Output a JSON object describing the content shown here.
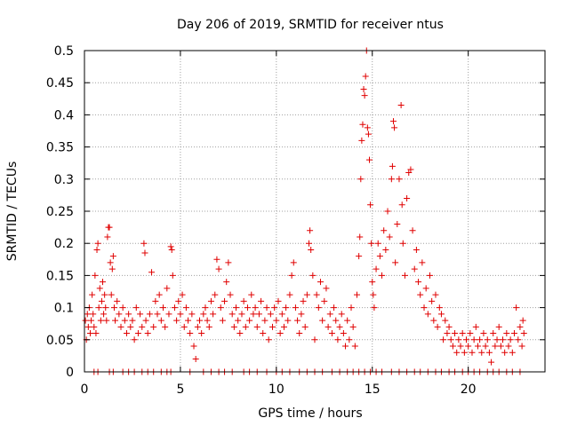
{
  "chart_data": {
    "type": "scatter",
    "title": "Day 206 of 2019, SRMTID for receiver ntus",
    "xlabel": "GPS time / hours",
    "ylabel": "SRMTID / TECUs",
    "xlim": [
      0,
      24
    ],
    "ylim": [
      0,
      0.5
    ],
    "x_ticks": [
      "0",
      "5",
      "10",
      "15",
      "20"
    ],
    "y_ticks": [
      "0",
      "0.05",
      "0.1",
      "0.15",
      "0.2",
      "0.25",
      "0.3",
      "0.35",
      "0.4",
      "0.45",
      "0.5"
    ],
    "x_tick_values": [
      0,
      5,
      10,
      15,
      20
    ],
    "y_tick_values": [
      0,
      0.05,
      0.1,
      0.15,
      0.2,
      0.25,
      0.3,
      0.35,
      0.4,
      0.45,
      0.5
    ],
    "grid": true,
    "marker": "+",
    "marker_color": "#e00000",
    "series": [
      {
        "points": [
          [
            0.05,
            0.08
          ],
          [
            0.1,
            0.05
          ],
          [
            0.15,
            0.09
          ],
          [
            0.2,
            0.07
          ],
          [
            0.25,
            0.1
          ],
          [
            0.3,
            0.06
          ],
          [
            0.35,
            0.08
          ],
          [
            0.4,
            0.12
          ],
          [
            0.45,
            0.09
          ],
          [
            0.5,
            0.07
          ],
          [
            0.55,
            0.15
          ],
          [
            0.6,
            0.06
          ],
          [
            0.65,
            0.19
          ],
          [
            0.7,
            0.2
          ],
          [
            0.75,
            0.1
          ],
          [
            0.8,
            0.13
          ],
          [
            0.85,
            0.08
          ],
          [
            0.9,
            0.11
          ],
          [
            0.95,
            0.14
          ],
          [
            1.0,
            0.09
          ],
          [
            1.05,
            0.12
          ],
          [
            1.1,
            0.1
          ],
          [
            1.15,
            0.08
          ],
          [
            1.2,
            0.21
          ],
          [
            1.25,
            0.225
          ],
          [
            1.3,
            0.225
          ],
          [
            1.35,
            0.17
          ],
          [
            1.4,
            0.12
          ],
          [
            1.45,
            0.16
          ],
          [
            1.5,
            0.18
          ],
          [
            1.55,
            0.1
          ],
          [
            1.6,
            0.08
          ],
          [
            1.7,
            0.11
          ],
          [
            1.8,
            0.09
          ],
          [
            1.9,
            0.07
          ],
          [
            2.0,
            0.1
          ],
          [
            2.1,
            0.08
          ],
          [
            2.2,
            0.06
          ],
          [
            2.3,
            0.09
          ],
          [
            2.4,
            0.07
          ],
          [
            2.5,
            0.08
          ],
          [
            2.6,
            0.05
          ],
          [
            2.7,
            0.1
          ],
          [
            2.8,
            0.06
          ],
          [
            2.9,
            0.09
          ],
          [
            3.0,
            0.07
          ],
          [
            3.1,
            0.2
          ],
          [
            3.15,
            0.185
          ],
          [
            3.2,
            0.08
          ],
          [
            3.3,
            0.06
          ],
          [
            3.4,
            0.09
          ],
          [
            3.5,
            0.155
          ],
          [
            3.6,
            0.07
          ],
          [
            3.7,
            0.11
          ],
          [
            3.8,
            0.09
          ],
          [
            3.9,
            0.12
          ],
          [
            4.0,
            0.08
          ],
          [
            4.1,
            0.1
          ],
          [
            4.2,
            0.07
          ],
          [
            4.3,
            0.13
          ],
          [
            4.4,
            0.09
          ],
          [
            4.5,
            0.195
          ],
          [
            4.55,
            0.19
          ],
          [
            4.6,
            0.15
          ],
          [
            4.7,
            0.1
          ],
          [
            4.8,
            0.08
          ],
          [
            4.9,
            0.11
          ],
          [
            5.0,
            0.09
          ],
          [
            5.1,
            0.12
          ],
          [
            5.2,
            0.07
          ],
          [
            5.3,
            0.1
          ],
          [
            5.4,
            0.08
          ],
          [
            5.5,
            0.06
          ],
          [
            5.6,
            0.09
          ],
          [
            5.7,
            0.04
          ],
          [
            5.8,
            0.02
          ],
          [
            5.9,
            0.07
          ],
          [
            6.0,
            0.08
          ],
          [
            6.1,
            0.06
          ],
          [
            6.2,
            0.09
          ],
          [
            6.3,
            0.1
          ],
          [
            6.4,
            0.08
          ],
          [
            6.5,
            0.07
          ],
          [
            6.6,
            0.11
          ],
          [
            6.7,
            0.09
          ],
          [
            6.8,
            0.12
          ],
          [
            6.9,
            0.175
          ],
          [
            7.0,
            0.16
          ],
          [
            7.1,
            0.1
          ],
          [
            7.2,
            0.08
          ],
          [
            7.3,
            0.11
          ],
          [
            7.4,
            0.14
          ],
          [
            7.5,
            0.17
          ],
          [
            7.6,
            0.12
          ],
          [
            7.7,
            0.09
          ],
          [
            7.8,
            0.07
          ],
          [
            7.9,
            0.1
          ],
          [
            8.0,
            0.08
          ],
          [
            8.1,
            0.06
          ],
          [
            8.2,
            0.09
          ],
          [
            8.3,
            0.11
          ],
          [
            8.4,
            0.07
          ],
          [
            8.5,
            0.1
          ],
          [
            8.6,
            0.08
          ],
          [
            8.7,
            0.12
          ],
          [
            8.8,
            0.09
          ],
          [
            8.9,
            0.1
          ],
          [
            9.0,
            0.07
          ],
          [
            9.1,
            0.09
          ],
          [
            9.2,
            0.11
          ],
          [
            9.3,
            0.06
          ],
          [
            9.4,
            0.08
          ],
          [
            9.5,
            0.1
          ],
          [
            9.6,
            0.05
          ],
          [
            9.7,
            0.09
          ],
          [
            9.8,
            0.07
          ],
          [
            9.9,
            0.1
          ],
          [
            10.0,
            0.08
          ],
          [
            10.1,
            0.11
          ],
          [
            10.2,
            0.06
          ],
          [
            10.3,
            0.09
          ],
          [
            10.4,
            0.07
          ],
          [
            10.5,
            0.1
          ],
          [
            10.6,
            0.08
          ],
          [
            10.7,
            0.12
          ],
          [
            10.8,
            0.15
          ],
          [
            10.9,
            0.17
          ],
          [
            11.0,
            0.1
          ],
          [
            11.1,
            0.08
          ],
          [
            11.2,
            0.06
          ],
          [
            11.3,
            0.09
          ],
          [
            11.4,
            0.11
          ],
          [
            11.5,
            0.07
          ],
          [
            11.6,
            0.12
          ],
          [
            11.7,
            0.2
          ],
          [
            11.75,
            0.22
          ],
          [
            11.8,
            0.19
          ],
          [
            11.9,
            0.15
          ],
          [
            12.0,
            0.05
          ],
          [
            12.1,
            0.12
          ],
          [
            12.2,
            0.1
          ],
          [
            12.3,
            0.14
          ],
          [
            12.4,
            0.08
          ],
          [
            12.5,
            0.11
          ],
          [
            12.6,
            0.13
          ],
          [
            12.7,
            0.07
          ],
          [
            12.8,
            0.09
          ],
          [
            12.9,
            0.06
          ],
          [
            13.0,
            0.1
          ],
          [
            13.1,
            0.08
          ],
          [
            13.2,
            0.05
          ],
          [
            13.3,
            0.07
          ],
          [
            13.4,
            0.09
          ],
          [
            13.5,
            0.06
          ],
          [
            13.6,
            0.04
          ],
          [
            13.7,
            0.08
          ],
          [
            13.8,
            0.05
          ],
          [
            13.9,
            0.1
          ],
          [
            14.0,
            0.07
          ],
          [
            14.1,
            0.04
          ],
          [
            14.2,
            0.12
          ],
          [
            14.3,
            0.18
          ],
          [
            14.35,
            0.21
          ],
          [
            14.4,
            0.3
          ],
          [
            14.45,
            0.36
          ],
          [
            14.5,
            0.385
          ],
          [
            14.55,
            0.44
          ],
          [
            14.6,
            0.43
          ],
          [
            14.65,
            0.46
          ],
          [
            14.7,
            0.5
          ],
          [
            14.75,
            0.38
          ],
          [
            14.8,
            0.37
          ],
          [
            14.85,
            0.33
          ],
          [
            14.9,
            0.26
          ],
          [
            14.95,
            0.2
          ],
          [
            15.0,
            0.14
          ],
          [
            15.05,
            0.12
          ],
          [
            15.1,
            0.1
          ],
          [
            15.2,
            0.16
          ],
          [
            15.3,
            0.2
          ],
          [
            15.4,
            0.18
          ],
          [
            15.5,
            0.15
          ],
          [
            15.6,
            0.22
          ],
          [
            15.7,
            0.19
          ],
          [
            15.8,
            0.25
          ],
          [
            15.9,
            0.21
          ],
          [
            16.0,
            0.3
          ],
          [
            16.05,
            0.32
          ],
          [
            16.1,
            0.39
          ],
          [
            16.15,
            0.38
          ],
          [
            16.2,
            0.17
          ],
          [
            16.3,
            0.23
          ],
          [
            16.4,
            0.3
          ],
          [
            16.5,
            0.415
          ],
          [
            16.55,
            0.26
          ],
          [
            16.6,
            0.2
          ],
          [
            16.7,
            0.15
          ],
          [
            16.8,
            0.27
          ],
          [
            16.9,
            0.31
          ],
          [
            17.0,
            0.315
          ],
          [
            17.1,
            0.22
          ],
          [
            17.2,
            0.16
          ],
          [
            17.3,
            0.19
          ],
          [
            17.4,
            0.14
          ],
          [
            17.5,
            0.12
          ],
          [
            17.6,
            0.17
          ],
          [
            17.7,
            0.1
          ],
          [
            17.8,
            0.13
          ],
          [
            17.9,
            0.09
          ],
          [
            18.0,
            0.15
          ],
          [
            18.1,
            0.11
          ],
          [
            18.2,
            0.08
          ],
          [
            18.3,
            0.12
          ],
          [
            18.4,
            0.07
          ],
          [
            18.5,
            0.1
          ],
          [
            18.6,
            0.09
          ],
          [
            18.7,
            0.05
          ],
          [
            18.8,
            0.08
          ],
          [
            18.9,
            0.06
          ],
          [
            19.0,
            0.07
          ],
          [
            19.1,
            0.05
          ],
          [
            19.2,
            0.04
          ],
          [
            19.3,
            0.06
          ],
          [
            19.4,
            0.03
          ],
          [
            19.5,
            0.05
          ],
          [
            19.6,
            0.04
          ],
          [
            19.7,
            0.06
          ],
          [
            19.8,
            0.03
          ],
          [
            19.9,
            0.05
          ],
          [
            20.0,
            0.04
          ],
          [
            20.1,
            0.06
          ],
          [
            20.2,
            0.03
          ],
          [
            20.3,
            0.05
          ],
          [
            20.4,
            0.07
          ],
          [
            20.5,
            0.04
          ],
          [
            20.6,
            0.05
          ],
          [
            20.7,
            0.03
          ],
          [
            20.8,
            0.06
          ],
          [
            20.9,
            0.04
          ],
          [
            21.0,
            0.05
          ],
          [
            21.1,
            0.03
          ],
          [
            21.2,
            0.015
          ],
          [
            21.3,
            0.06
          ],
          [
            21.4,
            0.04
          ],
          [
            21.5,
            0.05
          ],
          [
            21.6,
            0.07
          ],
          [
            21.7,
            0.04
          ],
          [
            21.8,
            0.05
          ],
          [
            21.9,
            0.03
          ],
          [
            22.0,
            0.06
          ],
          [
            22.1,
            0.04
          ],
          [
            22.2,
            0.05
          ],
          [
            22.3,
            0.03
          ],
          [
            22.4,
            0.06
          ],
          [
            22.5,
            0.1
          ],
          [
            22.6,
            0.05
          ],
          [
            22.7,
            0.07
          ],
          [
            22.8,
            0.04
          ],
          [
            22.85,
            0.08
          ],
          [
            22.9,
            0.06
          ]
        ]
      },
      {
        "points": [
          [
            0.5,
            0
          ],
          [
            0.7,
            0
          ],
          [
            1.3,
            0
          ],
          [
            1.5,
            0
          ],
          [
            2.0,
            0
          ],
          [
            2.3,
            0
          ],
          [
            2.6,
            0
          ],
          [
            3.0,
            0
          ],
          [
            3.3,
            0
          ],
          [
            3.6,
            0
          ],
          [
            4.0,
            0
          ],
          [
            4.3,
            0
          ],
          [
            4.5,
            0
          ],
          [
            5.5,
            0
          ],
          [
            6.2,
            0
          ],
          [
            6.6,
            0
          ],
          [
            7.0,
            0
          ],
          [
            7.3,
            0
          ],
          [
            7.7,
            0
          ],
          [
            8.3,
            0
          ],
          [
            8.6,
            0
          ],
          [
            9.0,
            0
          ],
          [
            9.5,
            0
          ],
          [
            10.0,
            0
          ],
          [
            10.3,
            0
          ],
          [
            10.7,
            0
          ],
          [
            11.2,
            0
          ],
          [
            11.6,
            0
          ],
          [
            12.0,
            0
          ],
          [
            12.4,
            0
          ],
          [
            12.9,
            0
          ],
          [
            13.3,
            0
          ],
          [
            13.7,
            0
          ],
          [
            14.0,
            0
          ],
          [
            14.3,
            0
          ],
          [
            14.6,
            0
          ],
          [
            14.9,
            0
          ],
          [
            15.2,
            0
          ],
          [
            15.5,
            0
          ],
          [
            16.0,
            0
          ],
          [
            16.4,
            0
          ],
          [
            16.8,
            0
          ],
          [
            17.2,
            0
          ],
          [
            17.5,
            0
          ],
          [
            17.9,
            0
          ],
          [
            18.3,
            0
          ],
          [
            18.6,
            0
          ],
          [
            19.0,
            0
          ],
          [
            19.3,
            0
          ],
          [
            19.7,
            0
          ],
          [
            20.0,
            0
          ],
          [
            20.3,
            0
          ],
          [
            20.6,
            0
          ],
          [
            21.0,
            0
          ],
          [
            21.3,
            0
          ],
          [
            21.6,
            0
          ],
          [
            22.0,
            0
          ],
          [
            22.3,
            0
          ],
          [
            22.7,
            0
          ]
        ]
      }
    ]
  }
}
